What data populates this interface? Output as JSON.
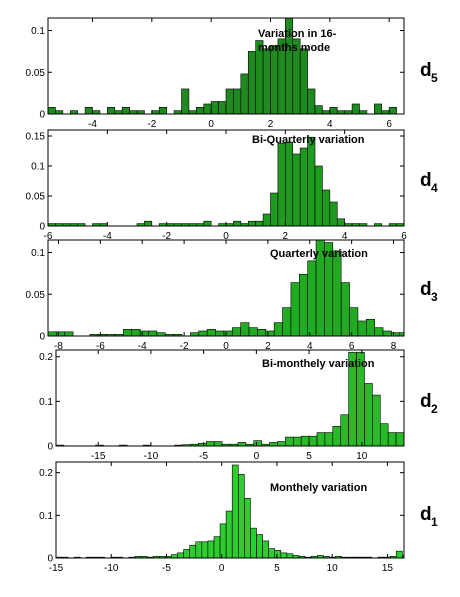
{
  "chart_data": [
    {
      "type": "bar",
      "label_main": "d",
      "label_sub": "5",
      "title_lines": [
        "Variation in 16-",
        "months mode"
      ],
      "bar_color": "#1f8a1f",
      "xlim": [
        -5.5,
        6.5
      ],
      "ylim": [
        0,
        0.115
      ],
      "x_ticks": [
        -4,
        -2,
        0,
        2,
        4,
        6
      ],
      "y_ticks": [
        0,
        0.05,
        0.1
      ],
      "y_tick_labels": [
        "0",
        "0.05",
        "0.1"
      ],
      "bin_start": -5.5,
      "bin_width": 0.25,
      "values": [
        0.008,
        0.004,
        0,
        0.004,
        0,
        0.008,
        0.004,
        0,
        0.008,
        0.004,
        0.008,
        0.004,
        0.004,
        0,
        0.004,
        0.008,
        0,
        0.004,
        0.03,
        0.004,
        0.008,
        0.012,
        0.015,
        0.015,
        0.03,
        0.03,
        0.048,
        0.075,
        0.088,
        0.078,
        0.082,
        0.09,
        0.117,
        0.09,
        0.078,
        0.03,
        0.01,
        0.004,
        0.008,
        0.004,
        0.004,
        0.012,
        0.004,
        0,
        0.012,
        0.004,
        0.008,
        0,
        0.004,
        0,
        0.008,
        0.004,
        0.004,
        0,
        0,
        0.004,
        0.008,
        0.004,
        0,
        0.008,
        0,
        0,
        0.004,
        0.008,
        0.004,
        0,
        0,
        0.004,
        0.012,
        0,
        0.004,
        0.008
      ]
    },
    {
      "type": "bar",
      "label_main": "d",
      "label_sub": "4",
      "title_lines": [
        "Bi-Quarterly variation"
      ],
      "bar_color": "#1f9a1f",
      "xlim": [
        -6,
        6
      ],
      "ylim": [
        0,
        0.16
      ],
      "x_ticks": [
        -6,
        -4,
        -2,
        0,
        2,
        4,
        6
      ],
      "y_ticks": [
        0,
        0.05,
        0.1,
        0.15
      ],
      "y_tick_labels": [
        "0",
        "0.05",
        "0.1",
        "0.15"
      ],
      "bin_start": -6,
      "bin_width": 0.25,
      "values": [
        0.004,
        0.004,
        0.004,
        0.004,
        0.004,
        0,
        0.004,
        0.004,
        0,
        0,
        0,
        0,
        0.004,
        0.008,
        0,
        0.004,
        0.004,
        0.004,
        0.004,
        0.004,
        0.004,
        0.008,
        0,
        0.004,
        0.004,
        0.008,
        0.004,
        0.008,
        0.008,
        0.02,
        0.055,
        0.138,
        0.14,
        0.12,
        0.13,
        0.148,
        0.1,
        0.06,
        0.04,
        0.012,
        0.004,
        0.004,
        0.004,
        0,
        0.004,
        0,
        0.004,
        0.004,
        0,
        0,
        0.004,
        0,
        0.004,
        0.004,
        0.004,
        0,
        0.012,
        0.02,
        0.008,
        0.004,
        0.004,
        0.004,
        0.004,
        0.004,
        0.004,
        0.004,
        0.004,
        0.004,
        0,
        0.004,
        0.004,
        0.004
      ]
    },
    {
      "type": "bar",
      "label_main": "d",
      "label_sub": "3",
      "title_lines": [
        "Quarterly variation"
      ],
      "bar_color": "#22aa22",
      "xlim": [
        -8.5,
        8.5
      ],
      "ylim": [
        0,
        0.115
      ],
      "x_ticks": [
        -8,
        -6,
        -4,
        -2,
        0,
        2,
        4,
        6,
        8
      ],
      "y_ticks": [
        0,
        0.05,
        0.1
      ],
      "y_tick_labels": [
        "0",
        "0.05",
        "0.1"
      ],
      "bin_start": -8.5,
      "bin_width": 0.4,
      "values": [
        0.005,
        0.005,
        0.005,
        0,
        0,
        0.002,
        0.002,
        0.002,
        0.002,
        0.008,
        0.008,
        0.006,
        0.006,
        0.004,
        0.002,
        0.002,
        0,
        0.004,
        0.006,
        0.008,
        0.006,
        0.006,
        0.01,
        0.016,
        0.01,
        0.008,
        0.006,
        0.016,
        0.034,
        0.064,
        0.074,
        0.09,
        0.116,
        0.112,
        0.102,
        0.064,
        0.034,
        0.018,
        0.02,
        0.01,
        0.006,
        0.004,
        0.004,
        0.006,
        0.006,
        0.004,
        0.006,
        0.008,
        0.004,
        0.004,
        0.006,
        0.008,
        0.012,
        0.014,
        0.016,
        0.012,
        0.01,
        0.006,
        0.004,
        0.002,
        0.004,
        0.006,
        0,
        0.004,
        0.006,
        0.004,
        0,
        0.004
      ]
    },
    {
      "type": "bar",
      "label_main": "d",
      "label_sub": "2",
      "title_lines": [
        "Bi-monthely variation"
      ],
      "bar_color": "#27bb27",
      "xlim": [
        -19,
        14
      ],
      "ylim": [
        0,
        0.215
      ],
      "x_ticks": [
        -15,
        -10,
        -5,
        0,
        5,
        10
      ],
      "y_ticks": [
        0,
        0.1,
        0.2
      ],
      "y_tick_labels": [
        "0",
        "0.1",
        "0.2"
      ],
      "bin_start": -19,
      "bin_width": 0.75,
      "values": [
        0.002,
        0,
        0,
        0,
        0,
        0.002,
        0,
        0,
        0.002,
        0,
        0,
        0.002,
        0,
        0,
        0,
        0.002,
        0.003,
        0.004,
        0.006,
        0.01,
        0.01,
        0.004,
        0.004,
        0.008,
        0.004,
        0.012,
        0.004,
        0.008,
        0.01,
        0.02,
        0.02,
        0.022,
        0.022,
        0.03,
        0.03,
        0.044,
        0.07,
        0.21,
        0.21,
        0.14,
        0.114,
        0.05,
        0.03,
        0.03,
        0.012,
        0.02,
        0.01,
        0.01,
        0.012,
        0.004,
        0.004,
        0.002,
        0.002,
        0.002,
        0.002,
        0,
        0.002,
        0.002,
        0.002,
        0,
        0.002,
        0.002,
        0.002,
        0,
        0.002,
        0.002,
        0,
        0.002,
        0,
        0.002,
        0.002,
        0.002,
        0.002,
        0.002
      ]
    },
    {
      "type": "bar",
      "label_main": "d",
      "label_sub": "1",
      "title_lines": [
        "Monthely variation"
      ],
      "bar_color": "#2ecc2e",
      "xlim": [
        -15,
        16.5
      ],
      "ylim": [
        0,
        0.225
      ],
      "x_ticks": [
        -15,
        -10,
        -5,
        0,
        5,
        10,
        15
      ],
      "y_ticks": [
        0,
        0.1,
        0.2
      ],
      "y_tick_labels": [
        "0",
        "0.1",
        "0.2"
      ],
      "bin_start": -15,
      "bin_width": 0.55,
      "values": [
        0.002,
        0.002,
        0,
        0.002,
        0,
        0.002,
        0.002,
        0.002,
        0,
        0.002,
        0.002,
        0,
        0.002,
        0.004,
        0.004,
        0.002,
        0.004,
        0.004,
        0.004,
        0.008,
        0.012,
        0.02,
        0.03,
        0.038,
        0.038,
        0.04,
        0.05,
        0.08,
        0.11,
        0.218,
        0.196,
        0.14,
        0.07,
        0.055,
        0.04,
        0.022,
        0.018,
        0.012,
        0.01,
        0.006,
        0.004,
        0.002,
        0.004,
        0.006,
        0.004,
        0.002,
        0.004,
        0.002,
        0.002,
        0.002,
        0.002,
        0.002,
        0,
        0.002,
        0.002,
        0.004,
        0.016,
        0.006,
        0.002,
        0.002,
        0.002,
        0,
        0.002,
        0.004,
        0,
        0.002,
        0.002,
        0,
        0.002,
        0.002,
        0,
        0.002
      ]
    }
  ]
}
